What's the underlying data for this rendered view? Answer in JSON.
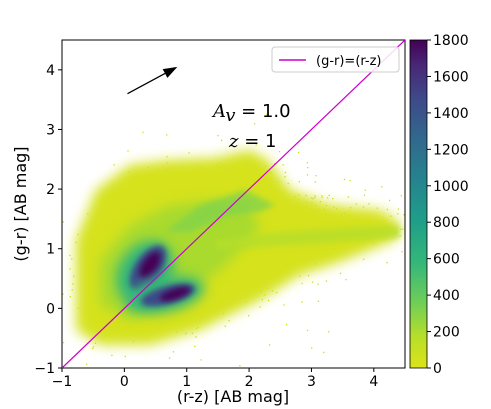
{
  "chart_data": {
    "type": "heatmap",
    "xlabel": "(r-z) [AB mag]",
    "ylabel": "(g-r) [AB mag]",
    "xlim": [
      -1,
      4.5
    ],
    "ylim": [
      -1,
      4.5
    ],
    "x_ticks": [
      "−1",
      "0",
      "1",
      "2",
      "3",
      "4"
    ],
    "y_ticks": [
      "−1",
      "0",
      "1",
      "2",
      "3",
      "4"
    ],
    "colorbar": {
      "colormap": "viridis_r",
      "range": [
        0,
        1800
      ],
      "ticks": [
        "0",
        "200",
        "400",
        "600",
        "800",
        "1000",
        "1200",
        "1400",
        "1600",
        "1800"
      ]
    },
    "reference_line": {
      "label": "(g-r)=(r-z)",
      "color": "#cc00cc",
      "points": [
        [
          -1,
          -1
        ],
        [
          4.5,
          4.5
        ]
      ]
    },
    "legend": {
      "placement": "top-right",
      "entries": [
        "(g-r)=(r-z)"
      ]
    },
    "annotations": {
      "av_label": "A",
      "av_sub": "v",
      "av_value": " = 1.0",
      "z_label": "z",
      "z_value": " = 1"
    },
    "reddening_arrow": {
      "from": [
        0.05,
        3.6
      ],
      "to": [
        0.85,
        4.05
      ]
    },
    "density_features": [
      {
        "name": "main cloud",
        "x_range": [
          -0.8,
          4.2
        ],
        "y_range": [
          -0.6,
          2.7
        ],
        "peak_density": 200
      },
      {
        "name": "upper dense ridge",
        "center": [
          0.45,
          0.65
        ],
        "peak_density": 1800
      },
      {
        "name": "lower dense ridge",
        "center": [
          0.9,
          0.25
        ],
        "peak_density": 1700
      },
      {
        "name": "red sequence branch",
        "x_range": [
          1.5,
          2.5
        ],
        "y_range": [
          1.2,
          2.5
        ],
        "peak_density": 400
      },
      {
        "name": "horizontal tail",
        "x_range": [
          1.5,
          4.5
        ],
        "y_range": [
          1.3,
          1.7
        ],
        "peak_density": 250
      }
    ]
  }
}
